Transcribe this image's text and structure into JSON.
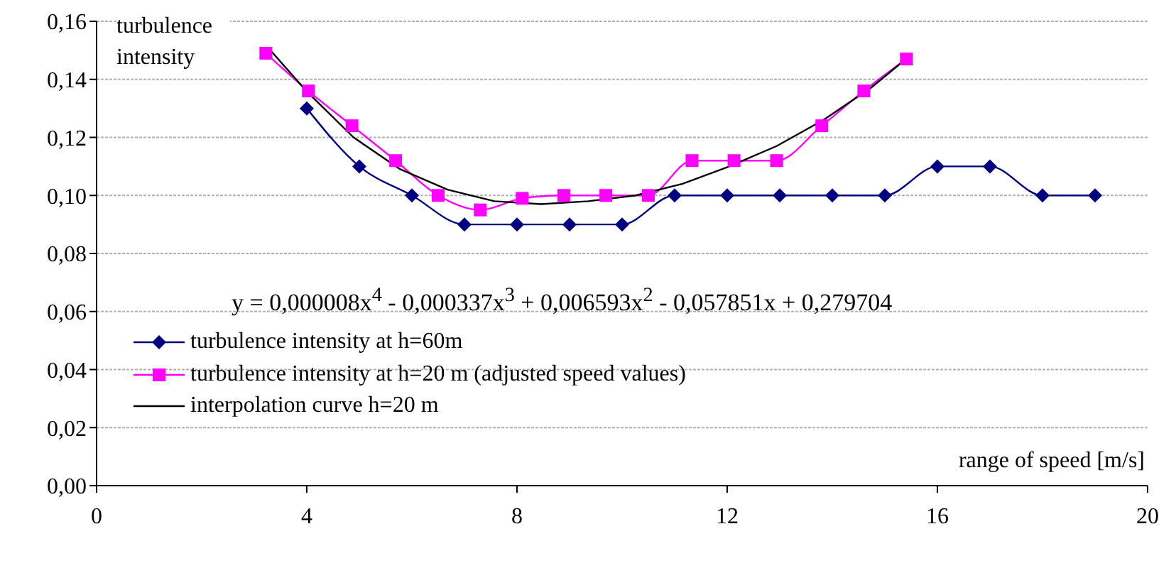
{
  "chart_data": {
    "type": "line",
    "xlabel": "range of speed [m/s]",
    "ylabel": "turbulence intensity",
    "annotations": [
      "y = 0,000008x$^{4}$ - 0,000337x$^{3}$ + 0,006593x$^{2}$ - 0,057851x + 0,279704"
    ],
    "xlim": [
      0,
      20
    ],
    "xticks": [
      0,
      4,
      8,
      12,
      16,
      20
    ],
    "ylim": [
      0,
      0.16
    ],
    "yticks": [
      {
        "value": 0,
        "label": "0,00"
      },
      {
        "value": 0.02,
        "label": "0,02"
      },
      {
        "value": 0.04,
        "label": "0,04"
      },
      {
        "value": 0.06,
        "label": "0,06"
      },
      {
        "value": 0.08,
        "label": "0,08"
      },
      {
        "value": 0.1,
        "label": "0,10"
      },
      {
        "value": 0.12,
        "label": "0,12"
      },
      {
        "value": 0.14,
        "label": "0,14"
      },
      {
        "value": 0.16,
        "label": "0,16"
      }
    ],
    "grid": "y",
    "legend": "bottom left",
    "line_style": "solid",
    "series": [
      {
        "name": "turbulence intensity at h=60m",
        "color": "#000080",
        "marker": "diamond",
        "x": [
          4,
          5,
          6,
          7,
          8,
          9,
          10,
          11,
          12,
          13,
          14,
          15,
          16,
          17,
          18,
          19
        ],
        "values": [
          0.13,
          0.11,
          0.1,
          0.09,
          0.09,
          0.09,
          0.09,
          0.1,
          0.1,
          0.1,
          0.1,
          0.1,
          0.11,
          0.11,
          0.1,
          0.1
        ]
      },
      {
        "name": "turbulence intensity at h=20 m (adjusted speed values)",
        "color": "#ff00ff",
        "marker": "square",
        "x": [
          3.22,
          4.03,
          4.86,
          5.69,
          6.5,
          7.3,
          8.1,
          8.89,
          9.69,
          10.5,
          11.33,
          12.13,
          12.94,
          13.8,
          14.6,
          15.41
        ],
        "values": [
          0.149,
          0.136,
          0.124,
          0.112,
          0.1,
          0.095,
          0.099,
          0.1,
          0.1,
          0.1,
          0.112,
          0.112,
          0.112,
          0.124,
          0.136,
          0.147
        ]
      },
      {
        "name": "interpolation curve  h=20 m",
        "color": "#000000",
        "marker": "none",
        "x": [
          3.26,
          3.99,
          4.89,
          5.78,
          6.68,
          7.57,
          8.46,
          9.36,
          10.26,
          11.15,
          12.04,
          12.94,
          13.83,
          14.73,
          15.4
        ],
        "values": [
          0.151,
          0.136,
          0.12,
          0.109,
          0.102,
          0.098,
          0.097,
          0.098,
          0.1,
          0.104,
          0.11,
          0.117,
          0.126,
          0.137,
          0.147
        ]
      }
    ]
  }
}
